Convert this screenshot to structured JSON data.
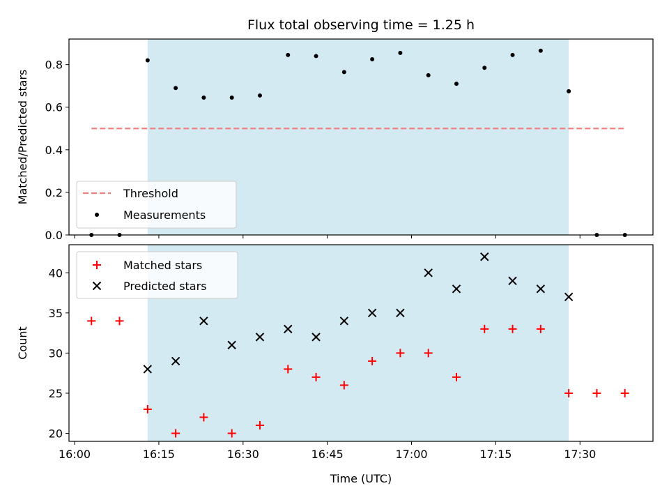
{
  "title": "Flux total observing time = 1.25 h",
  "colors": {
    "shade": "#add8e6",
    "threshold": "#f08080",
    "measurement": "#000000",
    "matched": "#ff0000",
    "predicted": "#000000"
  },
  "chart_data": [
    {
      "type": "scatter",
      "panel": "top",
      "ylabel": "Matched/Predicted stars",
      "xlabel": "",
      "ylim": [
        0.0,
        0.92
      ],
      "yticks": [
        0.0,
        0.2,
        0.4,
        0.6,
        0.8
      ],
      "ytick_labels": [
        "0.0",
        "0.2",
        "0.4",
        "0.6",
        "0.8"
      ],
      "shaded_span": [
        "16:13",
        "17:28"
      ],
      "threshold": {
        "name": "Threshold",
        "y": 0.5,
        "x_range": [
          "16:03",
          "17:38"
        ]
      },
      "series": [
        {
          "name": "Measurements",
          "x": [
            "16:03",
            "16:08",
            "16:13",
            "16:18",
            "16:23",
            "16:28",
            "16:33",
            "16:38",
            "16:43",
            "16:48",
            "16:53",
            "16:58",
            "17:03",
            "17:08",
            "17:13",
            "17:18",
            "17:23",
            "17:28",
            "17:33",
            "17:38"
          ],
          "y": [
            0.0,
            0.0,
            0.82,
            0.69,
            0.645,
            0.645,
            0.655,
            0.845,
            0.84,
            0.765,
            0.825,
            0.855,
            0.75,
            0.71,
            0.785,
            0.845,
            0.865,
            0.675,
            0.0,
            0.0
          ]
        }
      ],
      "legend": {
        "location": "lower-left",
        "entries": [
          "Threshold",
          "Measurements"
        ]
      }
    },
    {
      "type": "scatter",
      "panel": "bottom",
      "ylabel": "Count",
      "xlabel": "Time (UTC)",
      "ylim": [
        19,
        43.5
      ],
      "yticks": [
        20,
        25,
        30,
        35,
        40
      ],
      "ytick_labels": [
        "20",
        "25",
        "30",
        "35",
        "40"
      ],
      "xticks": [
        "16:00",
        "16:15",
        "16:30",
        "16:45",
        "17:00",
        "17:15",
        "17:30"
      ],
      "xlim": [
        "15:59",
        "17:43"
      ],
      "shaded_span": [
        "16:13",
        "17:28"
      ],
      "series": [
        {
          "name": "Matched stars",
          "marker": "+",
          "x": [
            "16:03",
            "16:08",
            "16:13",
            "16:18",
            "16:23",
            "16:28",
            "16:33",
            "16:38",
            "16:43",
            "16:48",
            "16:53",
            "16:58",
            "17:03",
            "17:08",
            "17:13",
            "17:18",
            "17:23",
            "17:28",
            "17:33",
            "17:38"
          ],
          "y": [
            34,
            34,
            23,
            20,
            22,
            20,
            21,
            28,
            27,
            26,
            29,
            30,
            30,
            27,
            33,
            33,
            33,
            25,
            25,
            25
          ]
        },
        {
          "name": "Predicted stars",
          "marker": "x",
          "x": [
            "16:13",
            "16:18",
            "16:23",
            "16:28",
            "16:33",
            "16:38",
            "16:43",
            "16:48",
            "16:53",
            "16:58",
            "17:03",
            "17:08",
            "17:13",
            "17:18",
            "17:23",
            "17:28"
          ],
          "y": [
            28,
            29,
            34,
            31,
            32,
            33,
            32,
            34,
            35,
            35,
            40,
            38,
            42,
            39,
            38,
            37
          ]
        }
      ],
      "legend": {
        "location": "upper-left",
        "entries": [
          "Matched stars",
          "Predicted stars"
        ]
      }
    }
  ]
}
